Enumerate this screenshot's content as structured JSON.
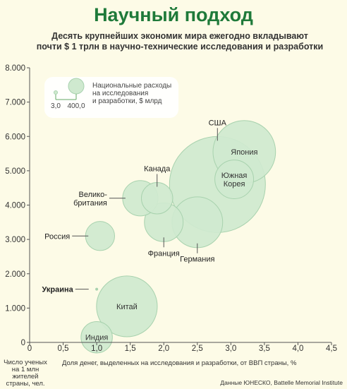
{
  "title": "Научный подход",
  "subtitle_line1": "Десять крупнейших экономик мира ежегодно вкладывают",
  "subtitle_line2": "почти $ 1 трлн в научно-технические исследования и разработки",
  "source": "Данные ЮНЕСКО, Battelle Memorial Institute",
  "colors": {
    "bubble_fill": "#cfe9cf",
    "bubble_stroke": "#a8d2ae",
    "background": "#fdfbe7",
    "title": "#1f7a3a",
    "highlight": "#d2232a"
  },
  "chart_data": {
    "type": "scatter",
    "xlabel": "Доля денег, выделенных на исследования и разработки, от ВВП страны, %",
    "ylabel": "Число ученых на 1 млн жителей страны, чел.",
    "ylabel_lines": [
      "Число ученых",
      "на 1 млн",
      "жителей",
      "страны, чел."
    ],
    "xlim": [
      0,
      4.5
    ],
    "ylim": [
      0,
      8000
    ],
    "x_ticks": [
      "0",
      "0,5",
      "1,0",
      "1,5",
      "2,0",
      "2,5",
      "3,0",
      "3,5",
      "4,0",
      "4,5"
    ],
    "y_ticks": [
      "0",
      "1.000",
      "2.000",
      "3.000",
      "4.000",
      "5.000",
      "6.000",
      "7.000",
      "8.000"
    ],
    "x_tick_values": [
      0,
      0.5,
      1.0,
      1.5,
      2.0,
      2.5,
      3.0,
      3.5,
      4.0,
      4.5
    ],
    "y_tick_values": [
      0,
      1000,
      2000,
      3000,
      4000,
      5000,
      6000,
      7000,
      8000
    ],
    "legend": {
      "text_lines": [
        "Национальные расходы",
        "на исследования",
        "и разработки, $ млрд"
      ],
      "small_label": "3,0",
      "large_label": "400,0",
      "small_value": 3.0,
      "large_value": 400.0
    },
    "points": [
      {
        "name": "США",
        "x": 2.8,
        "y": 4600,
        "size": 400.0,
        "label_pos": "above"
      },
      {
        "name": "Япония",
        "x": 3.2,
        "y": 5550,
        "size": 150.0,
        "label_pos": "inside"
      },
      {
        "name": "Китай",
        "x": 1.45,
        "y": 1050,
        "size": 140.0,
        "label_pos": "inside"
      },
      {
        "name": "Германия",
        "x": 2.5,
        "y": 3500,
        "size": 90.0,
        "label_pos": "below"
      },
      {
        "name": "Южная Корея",
        "name_lines": [
          "Южная",
          "Корея"
        ],
        "x": 3.05,
        "y": 4750,
        "size": 45.0,
        "label_pos": "inside"
      },
      {
        "name": "Франция",
        "x": 2.0,
        "y": 3500,
        "size": 45.0,
        "label_pos": "below"
      },
      {
        "name": "Велико-британия",
        "name_lines": [
          "Велико-",
          "британия"
        ],
        "x": 1.65,
        "y": 4200,
        "size": 35.0,
        "label_pos": "left"
      },
      {
        "name": "Канада",
        "x": 1.9,
        "y": 4200,
        "size": 25.0,
        "label_pos": "above"
      },
      {
        "name": "Россия",
        "x": 1.05,
        "y": 3100,
        "size": 20.0,
        "label_pos": "left"
      },
      {
        "name": "Индия",
        "x": 1.0,
        "y": 150,
        "size": 25.0,
        "label_pos": "inside"
      },
      {
        "name": "Украина",
        "x": 1.0,
        "y": 1550,
        "size": 0.6,
        "label_pos": "left",
        "highlight": true
      }
    ]
  }
}
